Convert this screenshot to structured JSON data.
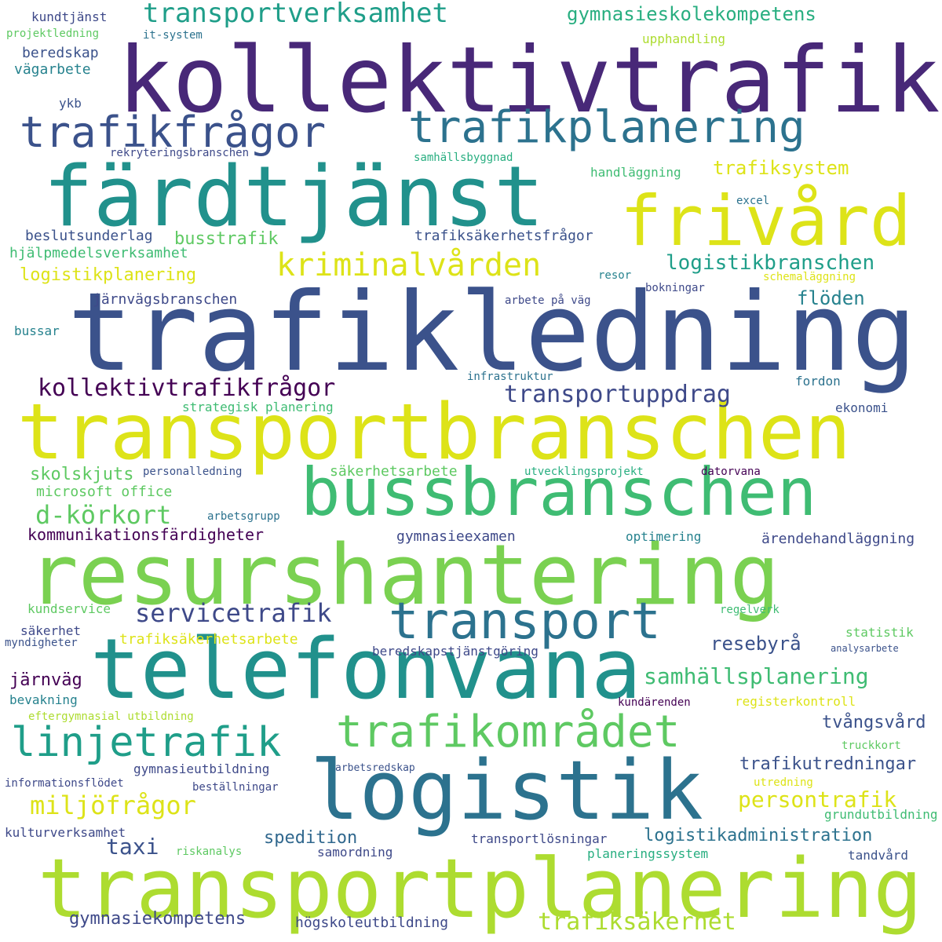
{
  "words": [
    {
      "text": "trafikledning",
      "color": "#3b528b"
    },
    {
      "text": "kollektivtrafik",
      "color": "#482878"
    },
    {
      "text": "färdtjänst",
      "color": "#21918c"
    },
    {
      "text": "transportbranschen",
      "color": "#dde318"
    },
    {
      "text": "resurshantering",
      "color": "#7ad151"
    },
    {
      "text": "bussbranschen",
      "color": "#3fbc73"
    },
    {
      "text": "telefonvana",
      "color": "#21918c"
    },
    {
      "text": "logistik",
      "color": "#2c728e"
    },
    {
      "text": "transportplanering",
      "color": "#addc30"
    },
    {
      "text": "trafikplanering",
      "color": "#2c728e"
    },
    {
      "text": "frivård",
      "color": "#dde318"
    },
    {
      "text": "trafikfrågor",
      "color": "#3b528b"
    },
    {
      "text": "transport",
      "color": "#2c728e"
    },
    {
      "text": "trafikområdet",
      "color": "#5ec962"
    },
    {
      "text": "linjetrafik",
      "color": "#1f9e89"
    },
    {
      "text": "transportverksamhet",
      "color": "#1f9e89"
    },
    {
      "text": "kriminalvården",
      "color": "#dde318"
    },
    {
      "text": "gymnasieskolekompetens",
      "color": "#28ae80"
    },
    {
      "text": "kollektivtrafikfrågor",
      "color": "#440154"
    },
    {
      "text": "d-körkort",
      "color": "#5ec962"
    },
    {
      "text": "logistikbranschen",
      "color": "#1f9e89"
    },
    {
      "text": "transportuppdrag",
      "color": "#3e4989"
    },
    {
      "text": "servicetrafik",
      "color": "#3e4989"
    },
    {
      "text": "samhällsplanering",
      "color": "#3fbc73"
    },
    {
      "text": "miljöfrågor",
      "color": "#dde318"
    },
    {
      "text": "persontrafik",
      "color": "#dde318"
    },
    {
      "text": "trafiksäkerhet",
      "color": "#addc30"
    },
    {
      "text": "trafiksystem",
      "color": "#dde318"
    },
    {
      "text": "flöden",
      "color": "#26828e"
    },
    {
      "text": "resebyrå",
      "color": "#3b528b"
    },
    {
      "text": "taxi",
      "color": "#3b528b"
    },
    {
      "text": "logistikplanering",
      "color": "#dde318"
    },
    {
      "text": "kommunikationsfärdigheter",
      "color": "#440154"
    },
    {
      "text": "busstrafik",
      "color": "#5ec962"
    },
    {
      "text": "skolskjuts",
      "color": "#5ec962"
    },
    {
      "text": "gymnasiekompetens",
      "color": "#3e4989"
    },
    {
      "text": "logistikadministration",
      "color": "#2c728e"
    },
    {
      "text": "spedition",
      "color": "#31688e"
    },
    {
      "text": "trafikutredningar",
      "color": "#3b528b"
    },
    {
      "text": "tvångsvård",
      "color": "#3b528b"
    },
    {
      "text": "järnväg",
      "color": "#440154"
    },
    {
      "text": "hjälpmedelsverksamhet",
      "color": "#3fbc73"
    },
    {
      "text": "gymnasieexamen",
      "color": "#3e4989"
    },
    {
      "text": "beslutsunderlag",
      "color": "#3b528b"
    },
    {
      "text": "järnvägsbranschen",
      "color": "#3e4989"
    },
    {
      "text": "trafiksäkerhetsfrågor",
      "color": "#3b528b"
    },
    {
      "text": "ärendehandläggning",
      "color": "#3e4989"
    },
    {
      "text": "högskoleutbildning",
      "color": "#3e4989"
    },
    {
      "text": "microsoft office",
      "color": "#5ec962"
    },
    {
      "text": "säkerhetsarbete",
      "color": "#5ec962"
    },
    {
      "text": "trafiksäkerhetsarbete",
      "color": "#dde318"
    },
    {
      "text": "kundservice",
      "color": "#5ec962"
    },
    {
      "text": "beredskapstjänstgöring",
      "color": "#3e4989"
    },
    {
      "text": "gymnasieutbildning",
      "color": "#3e4989"
    },
    {
      "text": "bussar",
      "color": "#26828e"
    },
    {
      "text": "beredskap",
      "color": "#3b528b"
    },
    {
      "text": "vägarbete",
      "color": "#26828e"
    },
    {
      "text": "kundtjänst",
      "color": "#3e4989"
    },
    {
      "text": "projektledning",
      "color": "#5ec962"
    },
    {
      "text": "it-system",
      "color": "#2c728e"
    },
    {
      "text": "upphandling",
      "color": "#addc30"
    },
    {
      "text": "ykb",
      "color": "#3b528b"
    },
    {
      "text": "rekryteringsbranschen",
      "color": "#3e4989"
    },
    {
      "text": "samhällsbyggnad",
      "color": "#28ae80"
    },
    {
      "text": "handläggning",
      "color": "#3fbc73"
    },
    {
      "text": "excel",
      "color": "#2c728e"
    },
    {
      "text": "resor",
      "color": "#26828e"
    },
    {
      "text": "schemaläggning",
      "color": "#dde318"
    },
    {
      "text": "bokningar",
      "color": "#3e4989"
    },
    {
      "text": "arbete på väg",
      "color": "#3e4989"
    },
    {
      "text": "infrastruktur",
      "color": "#2c728e"
    },
    {
      "text": "fordon",
      "color": "#2c728e"
    },
    {
      "text": "strategisk planering",
      "color": "#3fbc73"
    },
    {
      "text": "ekonomi",
      "color": "#3b528b"
    },
    {
      "text": "personalledning",
      "color": "#3b528b"
    },
    {
      "text": "utvecklingsprojekt",
      "color": "#28ae80"
    },
    {
      "text": "datorvana",
      "color": "#440154"
    },
    {
      "text": "arbetsgrupp",
      "color": "#2c728e"
    },
    {
      "text": "optimering",
      "color": "#26828e"
    },
    {
      "text": "regelverk",
      "color": "#3fbc73"
    },
    {
      "text": "statistik",
      "color": "#5ec962"
    },
    {
      "text": "säkerhet",
      "color": "#3e4989"
    },
    {
      "text": "myndigheter",
      "color": "#3b528b"
    },
    {
      "text": "analysarbete",
      "color": "#3b528b"
    },
    {
      "text": "bevakning",
      "color": "#26828e"
    },
    {
      "text": "kundärenden",
      "color": "#440154"
    },
    {
      "text": "registerkontroll",
      "color": "#dde318"
    },
    {
      "text": "eftergymnasial utbildning",
      "color": "#addc30"
    },
    {
      "text": "truckkort",
      "color": "#5ec962"
    },
    {
      "text": "arbetsredskap",
      "color": "#3b528b"
    },
    {
      "text": "informationsflödet",
      "color": "#3e4989"
    },
    {
      "text": "beställningar",
      "color": "#3e4989"
    },
    {
      "text": "utredning",
      "color": "#dde318"
    },
    {
      "text": "grundutbildning",
      "color": "#3fbc73"
    },
    {
      "text": "kulturverksamhet",
      "color": "#3e4989"
    },
    {
      "text": "transportlösningar",
      "color": "#3e4989"
    },
    {
      "text": "riskanalys",
      "color": "#5ec962"
    },
    {
      "text": "samordning",
      "color": "#3e4989"
    },
    {
      "text": "planeringssystem",
      "color": "#28ae80"
    },
    {
      "text": "tandvård",
      "color": "#3b528b"
    }
  ]
}
